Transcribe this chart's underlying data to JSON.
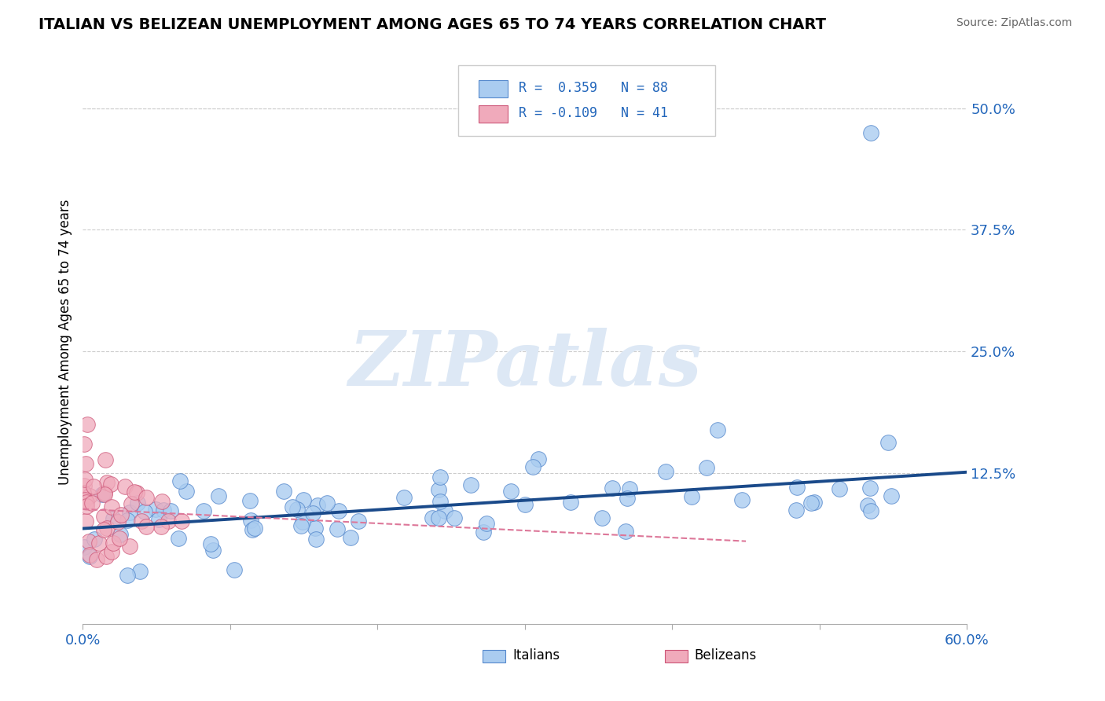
{
  "title": "ITALIAN VS BELIZEAN UNEMPLOYMENT AMONG AGES 65 TO 74 YEARS CORRELATION CHART",
  "source": "Source: ZipAtlas.com",
  "ylabel": "Unemployment Among Ages 65 to 74 years",
  "xlim": [
    0.0,
    0.6
  ],
  "ylim": [
    -0.03,
    0.55
  ],
  "ytick_vals": [
    0.0,
    0.125,
    0.25,
    0.375,
    0.5
  ],
  "ytick_labels": [
    "",
    "12.5%",
    "25.0%",
    "37.5%",
    "50.0%"
  ],
  "xticks": [
    0.0,
    0.1,
    0.2,
    0.3,
    0.4,
    0.5,
    0.6
  ],
  "xtick_labels": [
    "0.0%",
    "",
    "",
    "",
    "",
    "",
    "60.0%"
  ],
  "italian_color": "#aaccf0",
  "italian_edge_color": "#5588cc",
  "belizean_color": "#f0aabb",
  "belizean_edge_color": "#cc5577",
  "trend_italian_color": "#1a4a8a",
  "trend_belizean_color": "#dd7799",
  "R_italian": 0.359,
  "N_italian": 88,
  "R_belizean": -0.109,
  "N_belizean": 41,
  "watermark": "ZIPatlas",
  "watermark_color": "#dde8f5",
  "grid_color": "#cccccc",
  "trend_it_x0": 0.0,
  "trend_it_y0": 0.068,
  "trend_it_x1": 0.6,
  "trend_it_y1": 0.126,
  "trend_bz_x0": 0.0,
  "trend_bz_y0": 0.088,
  "trend_bz_x1": 0.45,
  "trend_bz_y1": 0.055
}
